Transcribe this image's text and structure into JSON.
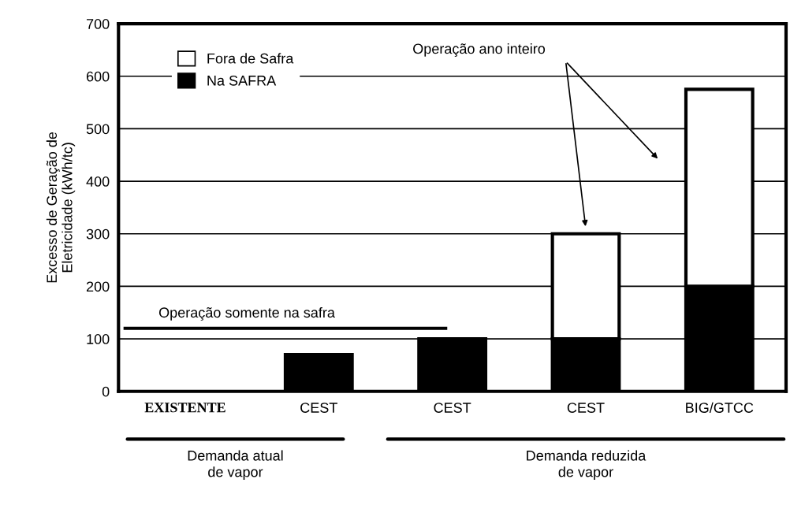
{
  "chart_data": {
    "type": "bar",
    "stacked": true,
    "categories": [
      "EXISTENTE",
      "CEST",
      "CEST",
      "CEST",
      "BIG/GTCC"
    ],
    "ylabel": "Excesso de Geração de\nEletricidade (kWh/tc)",
    "series": [
      {
        "name": "Na SAFRA",
        "color": "#000000",
        "values": [
          null,
          70,
          100,
          100,
          200
        ]
      },
      {
        "name": "Fora de Safra",
        "color": "#ffffff",
        "values": [
          null,
          null,
          null,
          200,
          375
        ]
      }
    ],
    "ylim": [
      0,
      700
    ],
    "yticks": [
      0,
      100,
      200,
      300,
      400,
      500,
      600,
      700
    ],
    "grid": "y",
    "legend": "top left",
    "ref_lines": [
      {
        "axis": "y",
        "value": 120,
        "label": "Operação somente na safra"
      }
    ],
    "annotations": [
      "Operação ano inteiro",
      "Demanda atual\nde vapor",
      "Demanda reduzida\nde vapor"
    ]
  }
}
